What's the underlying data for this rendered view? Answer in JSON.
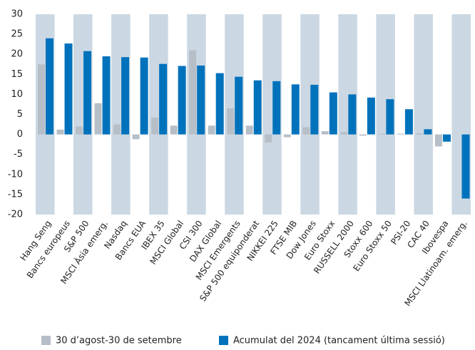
{
  "chart_data": {
    "type": "bar",
    "categories": [
      "Hang Seng",
      "Bancs europeus",
      "S&P 500",
      "MSCI Àsia emerg.",
      "Nasdaq",
      "Bancs EUA",
      "IBEX 35",
      "MSCI Global",
      "CSI 300",
      "DAX Global",
      "MSCI Emergents",
      "S&P 500 equiponderat",
      "NIKKEI 225",
      "FTSE MIB",
      "Dow Jones",
      "Euro Stoxx",
      "RUSSELL 2000",
      "Stoxx 600",
      "Euro Stoxx 50",
      "PSI-20",
      "CAC 40",
      "Ibovespa",
      "MSCI Llatinoam. emerg."
    ],
    "series": [
      {
        "name": "30 d’agost-30 de setembre",
        "color": "#b6bfc7",
        "values": [
          17.5,
          1.2,
          2.0,
          7.8,
          2.5,
          -1.2,
          4.2,
          2.2,
          21.0,
          2.2,
          6.5,
          2.2,
          -2.0,
          -0.7,
          1.8,
          0.8,
          0.6,
          -0.3,
          0.2,
          0.2,
          0.3,
          -3.0,
          0
        ]
      },
      {
        "name": "Acumulat del 2024 (tancament última sessió)",
        "color": "#0072bc",
        "values": [
          24.0,
          22.7,
          20.8,
          19.5,
          19.3,
          19.2,
          17.6,
          17.1,
          17.2,
          15.3,
          14.4,
          13.5,
          13.3,
          12.5,
          12.4,
          10.5,
          10.0,
          9.2,
          8.8,
          6.3,
          1.3,
          -1.8,
          -16.0
        ]
      }
    ],
    "ylim": [
      -20,
      30
    ],
    "yticks": [
      -20,
      -15,
      -10,
      -5,
      0,
      5,
      10,
      15,
      20,
      25,
      30
    ],
    "band_color": "#cbd8e3",
    "legend": "bottom"
  }
}
